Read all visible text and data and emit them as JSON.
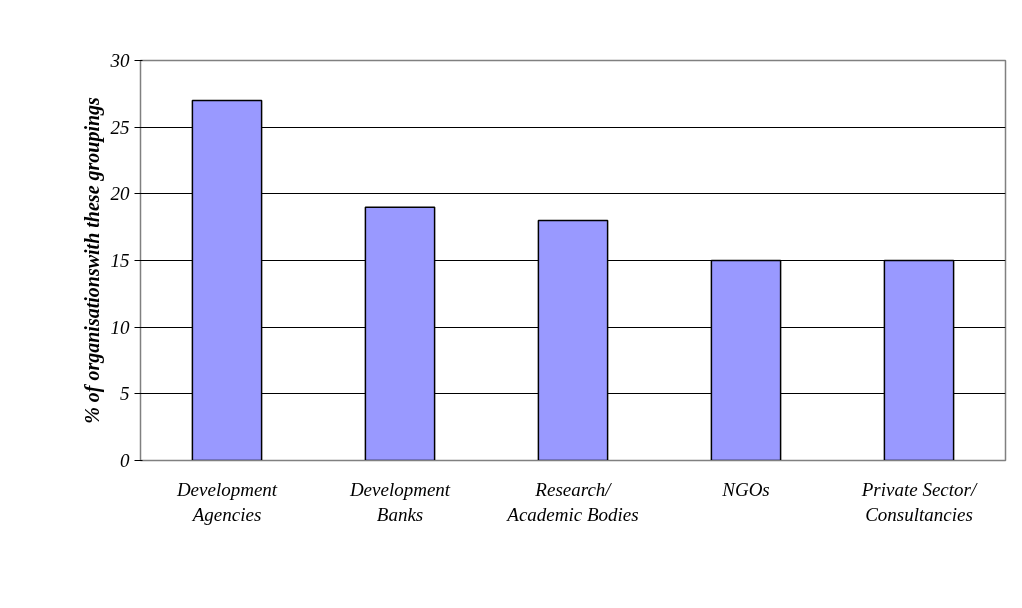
{
  "chart_data": {
    "type": "bar",
    "ylabel": "% of organisationswith these groupings",
    "categories": [
      "Development Agencies",
      "Development Banks",
      "Research/ Academic Bodies",
      "NGOs",
      "Private Sector/ Consultancies"
    ],
    "values": [
      27,
      19,
      18,
      15,
      15
    ],
    "color": "#9999ff",
    "ylim": [
      0,
      30
    ],
    "yticks": [
      0,
      5,
      10,
      15,
      20,
      25,
      30
    ],
    "grid": "y"
  }
}
